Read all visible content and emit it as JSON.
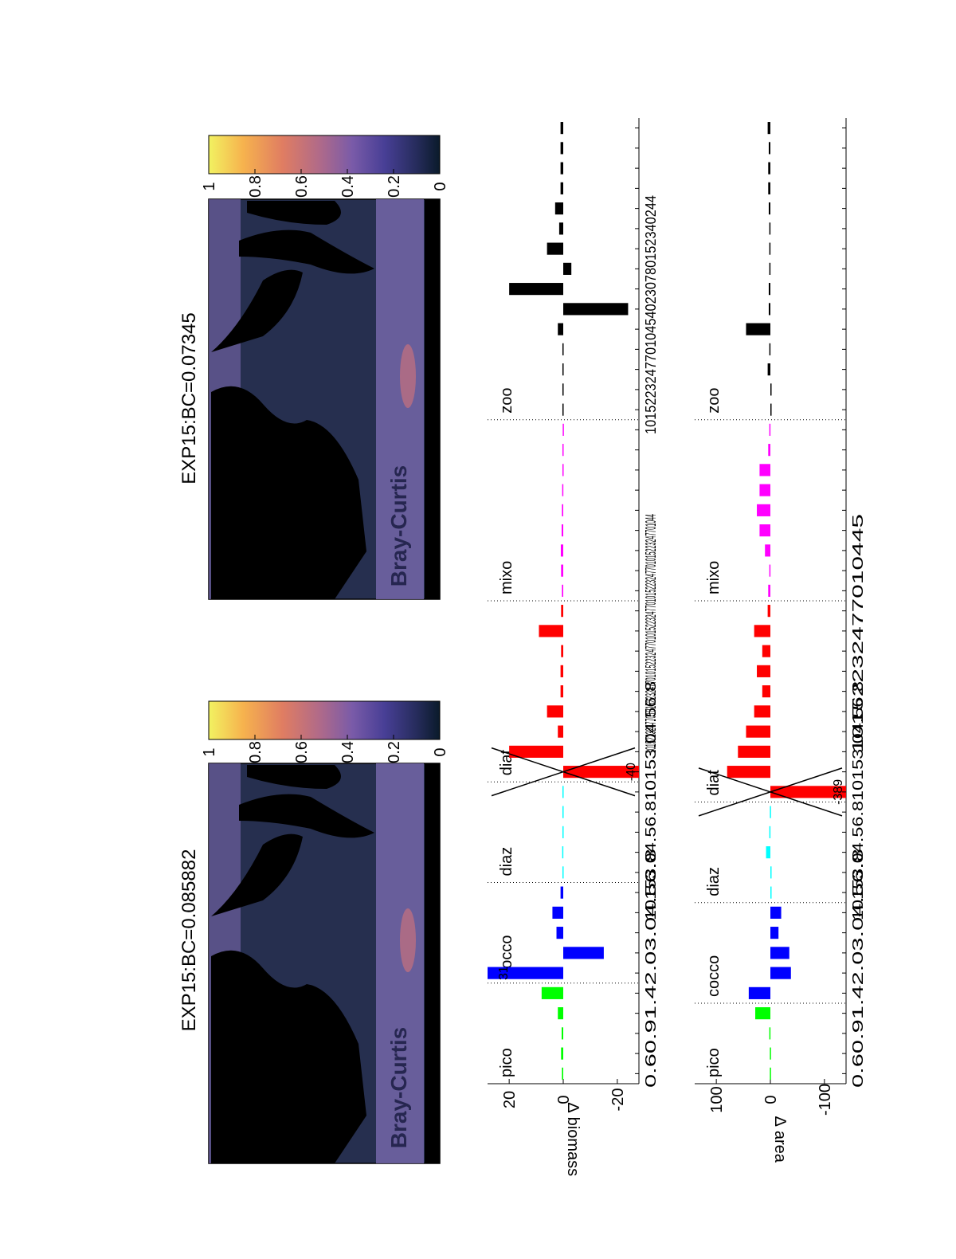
{
  "maps": [
    {
      "title": "EXP15:BC=0.085882",
      "label": "Bray-Curtis",
      "has_contours": true
    },
    {
      "title": "EXP15:BC=0.07345",
      "label": "Bray-Curtis",
      "has_contours": false
    }
  ],
  "colorbar": {
    "ticks": [
      "1",
      "0.8",
      "0.6",
      "0.4",
      "0.2",
      "0"
    ],
    "range": [
      0,
      1
    ],
    "colors": [
      "#f2f261",
      "#f6b24e",
      "#e07d62",
      "#b06a89",
      "#7a5ba8",
      "#483f96",
      "#262c5c",
      "#0a1a2a"
    ]
  },
  "groups": [
    {
      "name": "pico",
      "color": "#00ff00"
    },
    {
      "name": "cocco",
      "color": "#0000ff"
    },
    {
      "name": "diaz",
      "color": "#00ffff"
    },
    {
      "name": "diat",
      "color": "#ff0000"
    },
    {
      "name": "mixo",
      "color": "#ff00ff"
    },
    {
      "name": "zoo",
      "color": "#000000"
    }
  ],
  "chart_data": [
    {
      "type": "bar",
      "ylabel": "∆ biomass",
      "yticks": [
        "20",
        "0",
        "-20"
      ],
      "ylim": [
        -28,
        28
      ],
      "annotations": [
        "31",
        "-40"
      ],
      "values": {
        "pico": [
          0.5,
          0.8,
          0.6,
          2,
          8
        ],
        "cocco": [
          31,
          -15,
          2.5,
          4,
          1
        ],
        "diaz": [
          0.3,
          0.4,
          0.3,
          0.3,
          0.3
        ],
        "diat": [
          -40,
          20,
          2,
          6,
          1,
          1,
          0.8,
          9,
          0.8
        ],
        "mixo": [
          0.5,
          0.8,
          0.9,
          0.6,
          0.5,
          0.4,
          0.3,
          0.3,
          0.2
        ],
        "zoo": [
          0.3,
          0.3,
          0.3,
          0.3,
          2,
          -24,
          20,
          -3,
          6,
          1.5,
          3,
          1,
          1,
          1,
          1
        ]
      }
    },
    {
      "type": "bar",
      "ylabel": "∆ area",
      "yticks": [
        "100",
        "0",
        "-100"
      ],
      "ylim": [
        -140,
        140
      ],
      "annotations": [
        "-389"
      ],
      "values": {
        "pico": [
          1,
          1,
          2,
          28
        ],
        "cocco": [
          40,
          -38,
          -35,
          -15,
          -20
        ],
        "diaz": [
          0,
          0,
          8,
          2,
          1
        ],
        "diat": [
          -389,
          80,
          60,
          45,
          30,
          15,
          25,
          15,
          30,
          5
        ],
        "mixo": [
          4,
          2,
          10,
          20,
          25,
          20,
          20,
          4,
          2
        ],
        "zoo": [
          0,
          0,
          5,
          2,
          45,
          3,
          3,
          2,
          2,
          2,
          3,
          4,
          4,
          3,
          5
        ]
      }
    }
  ],
  "xtick_label_strings": [
    "0.60.91.42.03.04.56.8",
    "0.60.91.42.03.04.56.8",
    "10153.04.56.810153.04.56.8",
    "10153.04.56.810153.04.56.8",
    "1015223247701015223247701015223247701015223247701015223247701015223247701044",
    "10152232477010445",
    "101522324770104540230780152340244"
  ]
}
